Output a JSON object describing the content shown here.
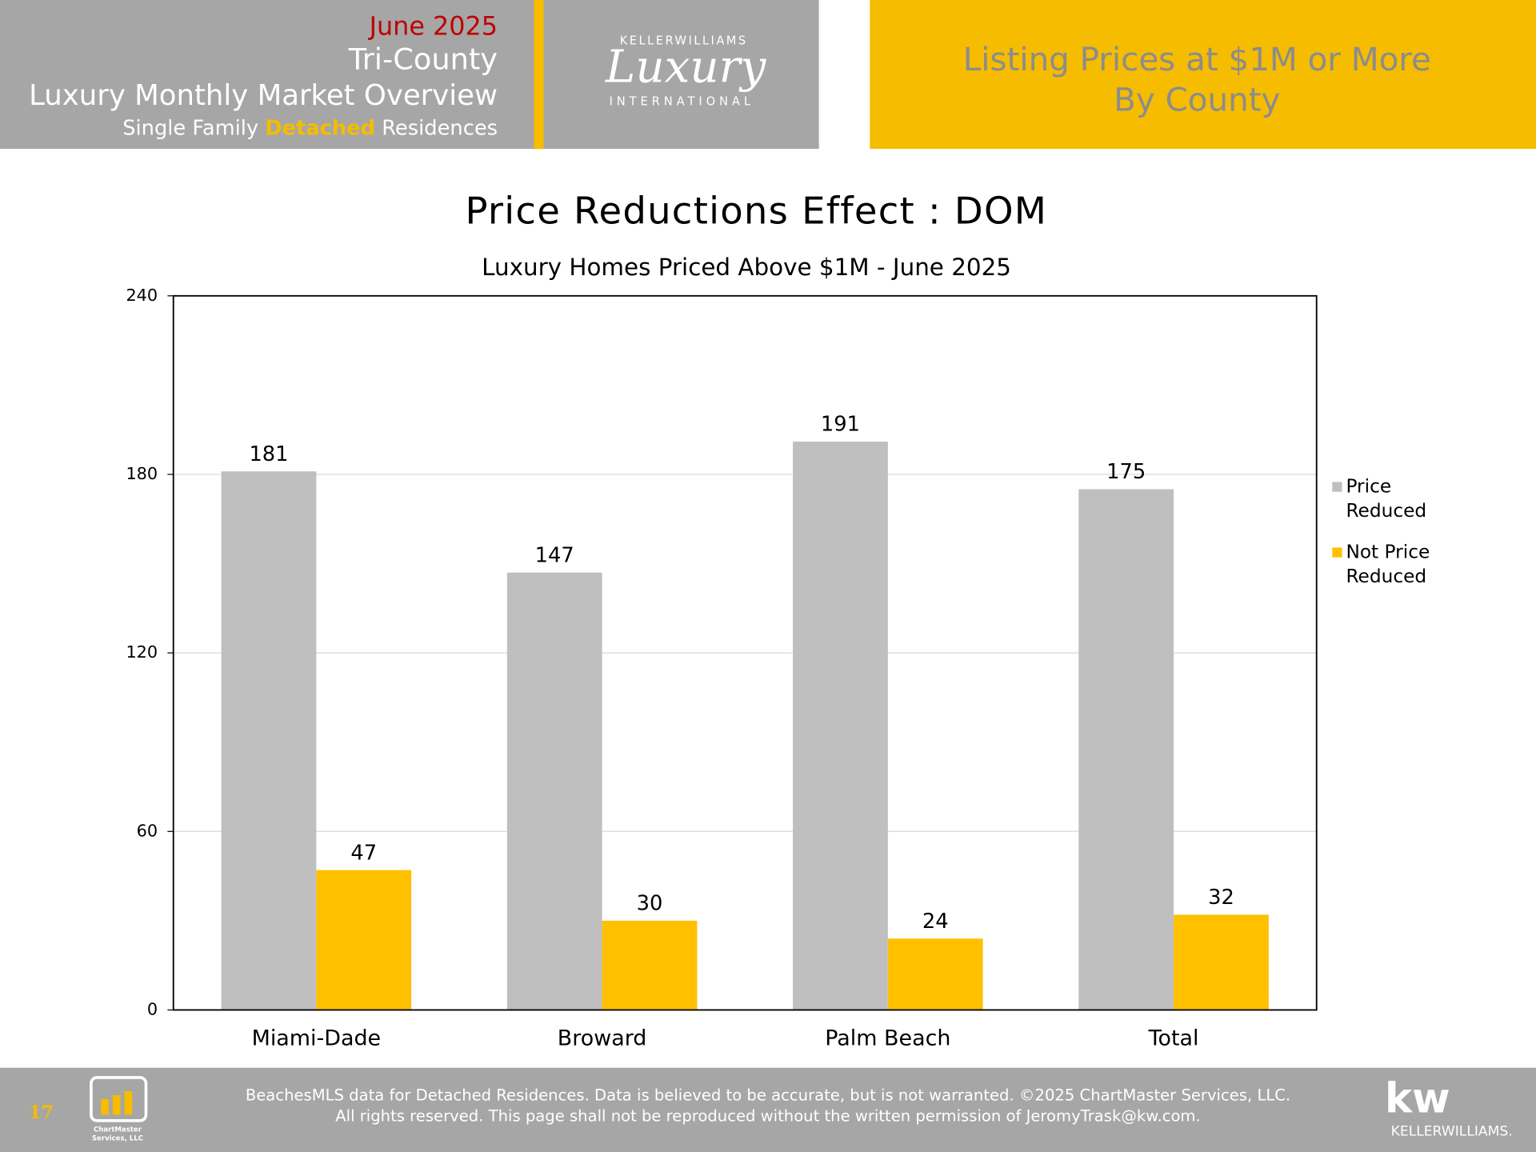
{
  "header": {
    "date": "June 2025",
    "region": "Tri-County",
    "report": "Luxury Monthly Market Overview",
    "segment": [
      "Single Family",
      "Detached",
      "Residences"
    ],
    "logo": {
      "brand": "KELLERWILLIAMS",
      "script": "Luxury",
      "line": "INTERNATIONAL"
    },
    "section": [
      "Listing Prices at $1M or More",
      "By County"
    ]
  },
  "chart_data": {
    "type": "bar",
    "title": "Price Reductions Effect : DOM",
    "subtitle": "Luxury Homes Priced Above $1M - June 2025",
    "categories": [
      "Miami-Dade",
      "Broward",
      "Palm Beach",
      "Total"
    ],
    "series": [
      {
        "name": "Price Reduced",
        "color": "#bfbfbf",
        "values": [
          181,
          147,
          191,
          175
        ]
      },
      {
        "name": "Not Price Reduced",
        "color": "#ffc000",
        "values": [
          47,
          30,
          24,
          32
        ]
      }
    ],
    "ylim": [
      0,
      240
    ],
    "yticks": [
      0,
      60,
      120,
      180,
      240
    ],
    "grid": true,
    "legend": "right"
  },
  "footer": {
    "page": "17",
    "badge": [
      "ChartMaster",
      "Services, LLC"
    ],
    "disclaimer": [
      "BeachesMLS data for Detached Residences.  Data is believed to be accurate, but is not warranted.   ©2025  ChartMaster Services, LLC.",
      "All rights reserved. This page shall not be reproduced without the written permission of JeromyTrask@kw.com."
    ],
    "logo": [
      "kw",
      "KELLERWILLIAMS."
    ]
  }
}
